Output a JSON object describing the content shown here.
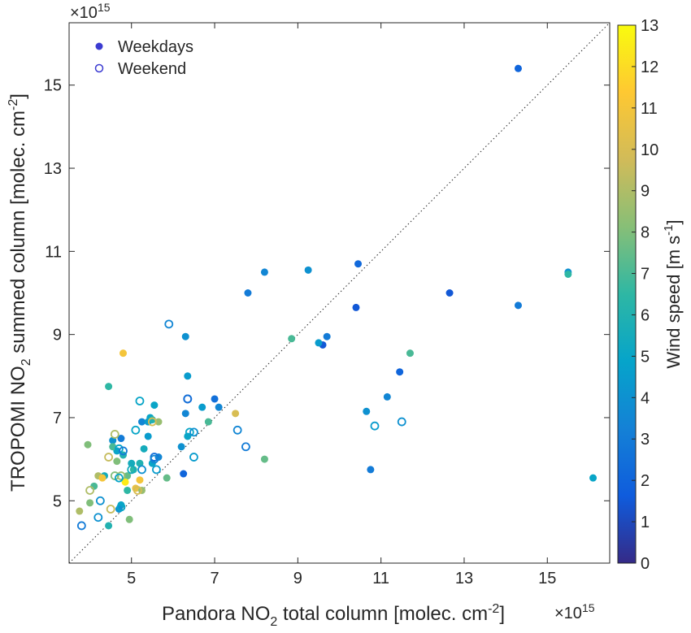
{
  "chart_data": {
    "type": "scatter",
    "xlabel": "Pandora NO",
    "xlabel_sub": "2",
    "xlabel_rest": " total column [molec. cm",
    "xlabel_sup": "-2",
    "xlabel_end": "]",
    "ylabel": "TROPOMI NO",
    "ylabel_sub": "2",
    "ylabel_rest": " summed column [molec. cm",
    "ylabel_sup": "-2",
    "ylabel_end": "]",
    "x_multiplier_base": "×10",
    "x_multiplier_exp": "15",
    "y_multiplier_base": "×10",
    "y_multiplier_exp": "15",
    "xlim": [
      3.5,
      16.5
    ],
    "ylim": [
      3.5,
      16.5
    ],
    "x_ticks": [
      5,
      7,
      9,
      11,
      13,
      15
    ],
    "y_ticks": [
      5,
      7,
      9,
      11,
      13,
      15
    ],
    "one_to_one_line": true,
    "grid": false,
    "legend_position": "top-left",
    "colorbar": {
      "label": "Wind speed [m s",
      "label_sup": "-1",
      "label_end": "]",
      "min": 0,
      "max": 13,
      "ticks": [
        0,
        1,
        2,
        3,
        4,
        5,
        6,
        7,
        8,
        9,
        10,
        11,
        12,
        13
      ],
      "colormap": "parula",
      "stops": [
        "#352a87",
        "#0f5cdd",
        "#1481d6",
        "#06a4ca",
        "#2eb7a4",
        "#87bf77",
        "#d1bb59",
        "#fec832",
        "#f9fb0e"
      ]
    },
    "series": [
      {
        "name": "Weekdays",
        "marker": "filled",
        "points": [
          [
            14.3,
            15.4,
            2.0
          ],
          [
            15.5,
            10.5,
            4.0
          ],
          [
            15.5,
            10.45,
            6.5
          ],
          [
            16.1,
            5.55,
            5.0
          ],
          [
            12.65,
            10.0,
            1.5
          ],
          [
            14.3,
            9.7,
            3.0
          ],
          [
            10.45,
            10.7,
            2.2
          ],
          [
            10.4,
            9.65,
            1.5
          ],
          [
            9.25,
            10.55,
            4.0
          ],
          [
            8.2,
            10.5,
            3.5
          ],
          [
            7.8,
            10.0,
            3.0
          ],
          [
            9.7,
            8.95,
            3.0
          ],
          [
            9.6,
            8.75,
            1.5
          ],
          [
            9.5,
            8.8,
            4.5
          ],
          [
            8.85,
            8.9,
            7.0
          ],
          [
            11.45,
            8.1,
            2.0
          ],
          [
            11.7,
            8.55,
            7.0
          ],
          [
            11.15,
            7.5,
            3.5
          ],
          [
            10.65,
            7.15,
            4.0
          ],
          [
            10.75,
            5.75,
            3.0
          ],
          [
            4.8,
            8.55,
            11.0
          ],
          [
            6.3,
            8.95,
            4.0
          ],
          [
            6.35,
            8.0,
            4.5
          ],
          [
            4.45,
            7.75,
            6.5
          ],
          [
            7.0,
            7.45,
            2.5
          ],
          [
            7.1,
            7.25,
            3.5
          ],
          [
            6.7,
            7.25,
            4.5
          ],
          [
            6.85,
            6.9,
            7.0
          ],
          [
            5.55,
            7.3,
            5.0
          ],
          [
            5.25,
            6.9,
            3.5
          ],
          [
            5.4,
            6.9,
            4.5
          ],
          [
            5.45,
            7.0,
            5.0
          ],
          [
            5.5,
            6.95,
            6.0
          ],
          [
            5.65,
            6.9,
            8.5
          ],
          [
            5.4,
            6.55,
            4.5
          ],
          [
            6.3,
            7.1,
            3.5
          ],
          [
            6.35,
            6.55,
            5.0
          ],
          [
            6.2,
            6.3,
            4.0
          ],
          [
            6.25,
            5.65,
            2.0
          ],
          [
            7.5,
            7.1,
            10.0
          ],
          [
            8.2,
            6.0,
            7.5
          ],
          [
            5.85,
            5.55,
            7.5
          ],
          [
            5.3,
            6.25,
            5.5
          ],
          [
            5.5,
            5.9,
            5.0
          ],
          [
            5.65,
            6.05,
            3.5
          ],
          [
            5.2,
            5.9,
            6.0
          ],
          [
            5.0,
            5.9,
            5.5
          ],
          [
            5.05,
            5.75,
            6.5
          ],
          [
            4.75,
            6.5,
            3.0
          ],
          [
            4.55,
            6.45,
            4.0
          ],
          [
            4.65,
            6.2,
            5.0
          ],
          [
            4.8,
            6.1,
            6.0
          ],
          [
            4.65,
            5.95,
            8.0
          ],
          [
            4.9,
            5.6,
            7.5
          ],
          [
            4.55,
            6.3,
            7.0
          ],
          [
            3.95,
            6.35,
            8.0
          ],
          [
            4.35,
            5.6,
            5.5
          ],
          [
            4.2,
            5.6,
            9.0
          ],
          [
            4.3,
            5.55,
            11.0
          ],
          [
            4.85,
            5.45,
            12.5
          ],
          [
            5.2,
            5.5,
            11.0
          ],
          [
            5.1,
            5.3,
            10.5
          ],
          [
            5.25,
            5.25,
            8.5
          ],
          [
            4.9,
            5.25,
            6.5
          ],
          [
            4.75,
            4.9,
            5.0
          ],
          [
            4.7,
            4.8,
            4.0
          ],
          [
            4.95,
            4.55,
            8.0
          ],
          [
            4.45,
            4.4,
            6.0
          ],
          [
            3.75,
            4.75,
            9.0
          ],
          [
            4.0,
            4.95,
            8.0
          ],
          [
            4.1,
            5.35,
            7.0
          ]
        ]
      },
      {
        "name": "Weekend",
        "marker": "open",
        "points": [
          [
            5.9,
            9.25,
            3.5
          ],
          [
            6.35,
            7.45,
            1.0
          ],
          [
            6.35,
            7.45,
            2.5
          ],
          [
            5.2,
            7.4,
            5.0
          ],
          [
            5.1,
            6.7,
            5.0
          ],
          [
            6.4,
            6.65,
            5.0
          ],
          [
            6.5,
            6.65,
            4.0
          ],
          [
            6.5,
            6.05,
            4.5
          ],
          [
            7.55,
            6.7,
            3.5
          ],
          [
            7.75,
            6.3,
            3.0
          ],
          [
            10.85,
            6.8,
            4.5
          ],
          [
            11.5,
            6.9,
            4.0
          ],
          [
            5.5,
            6.9,
            10.0
          ],
          [
            4.6,
            6.6,
            9.0
          ],
          [
            4.7,
            6.25,
            5.0
          ],
          [
            4.8,
            6.2,
            3.0
          ],
          [
            4.45,
            6.05,
            9.5
          ],
          [
            5.55,
            6.05,
            2.5
          ],
          [
            5.55,
            6.0,
            3.5
          ],
          [
            5.6,
            5.75,
            4.5
          ],
          [
            5.0,
            5.75,
            5.5
          ],
          [
            5.25,
            5.75,
            4.0
          ],
          [
            4.6,
            5.6,
            8.0
          ],
          [
            4.75,
            5.6,
            8.5
          ],
          [
            4.7,
            5.55,
            5.0
          ],
          [
            4.0,
            5.25,
            9.0
          ],
          [
            5.15,
            5.25,
            10.0
          ],
          [
            4.25,
            5.0,
            4.0
          ],
          [
            4.2,
            4.6,
            4.0
          ],
          [
            4.5,
            4.8,
            9.5
          ],
          [
            4.75,
            4.85,
            5.0
          ],
          [
            3.8,
            4.4,
            3.0
          ]
        ]
      }
    ]
  }
}
